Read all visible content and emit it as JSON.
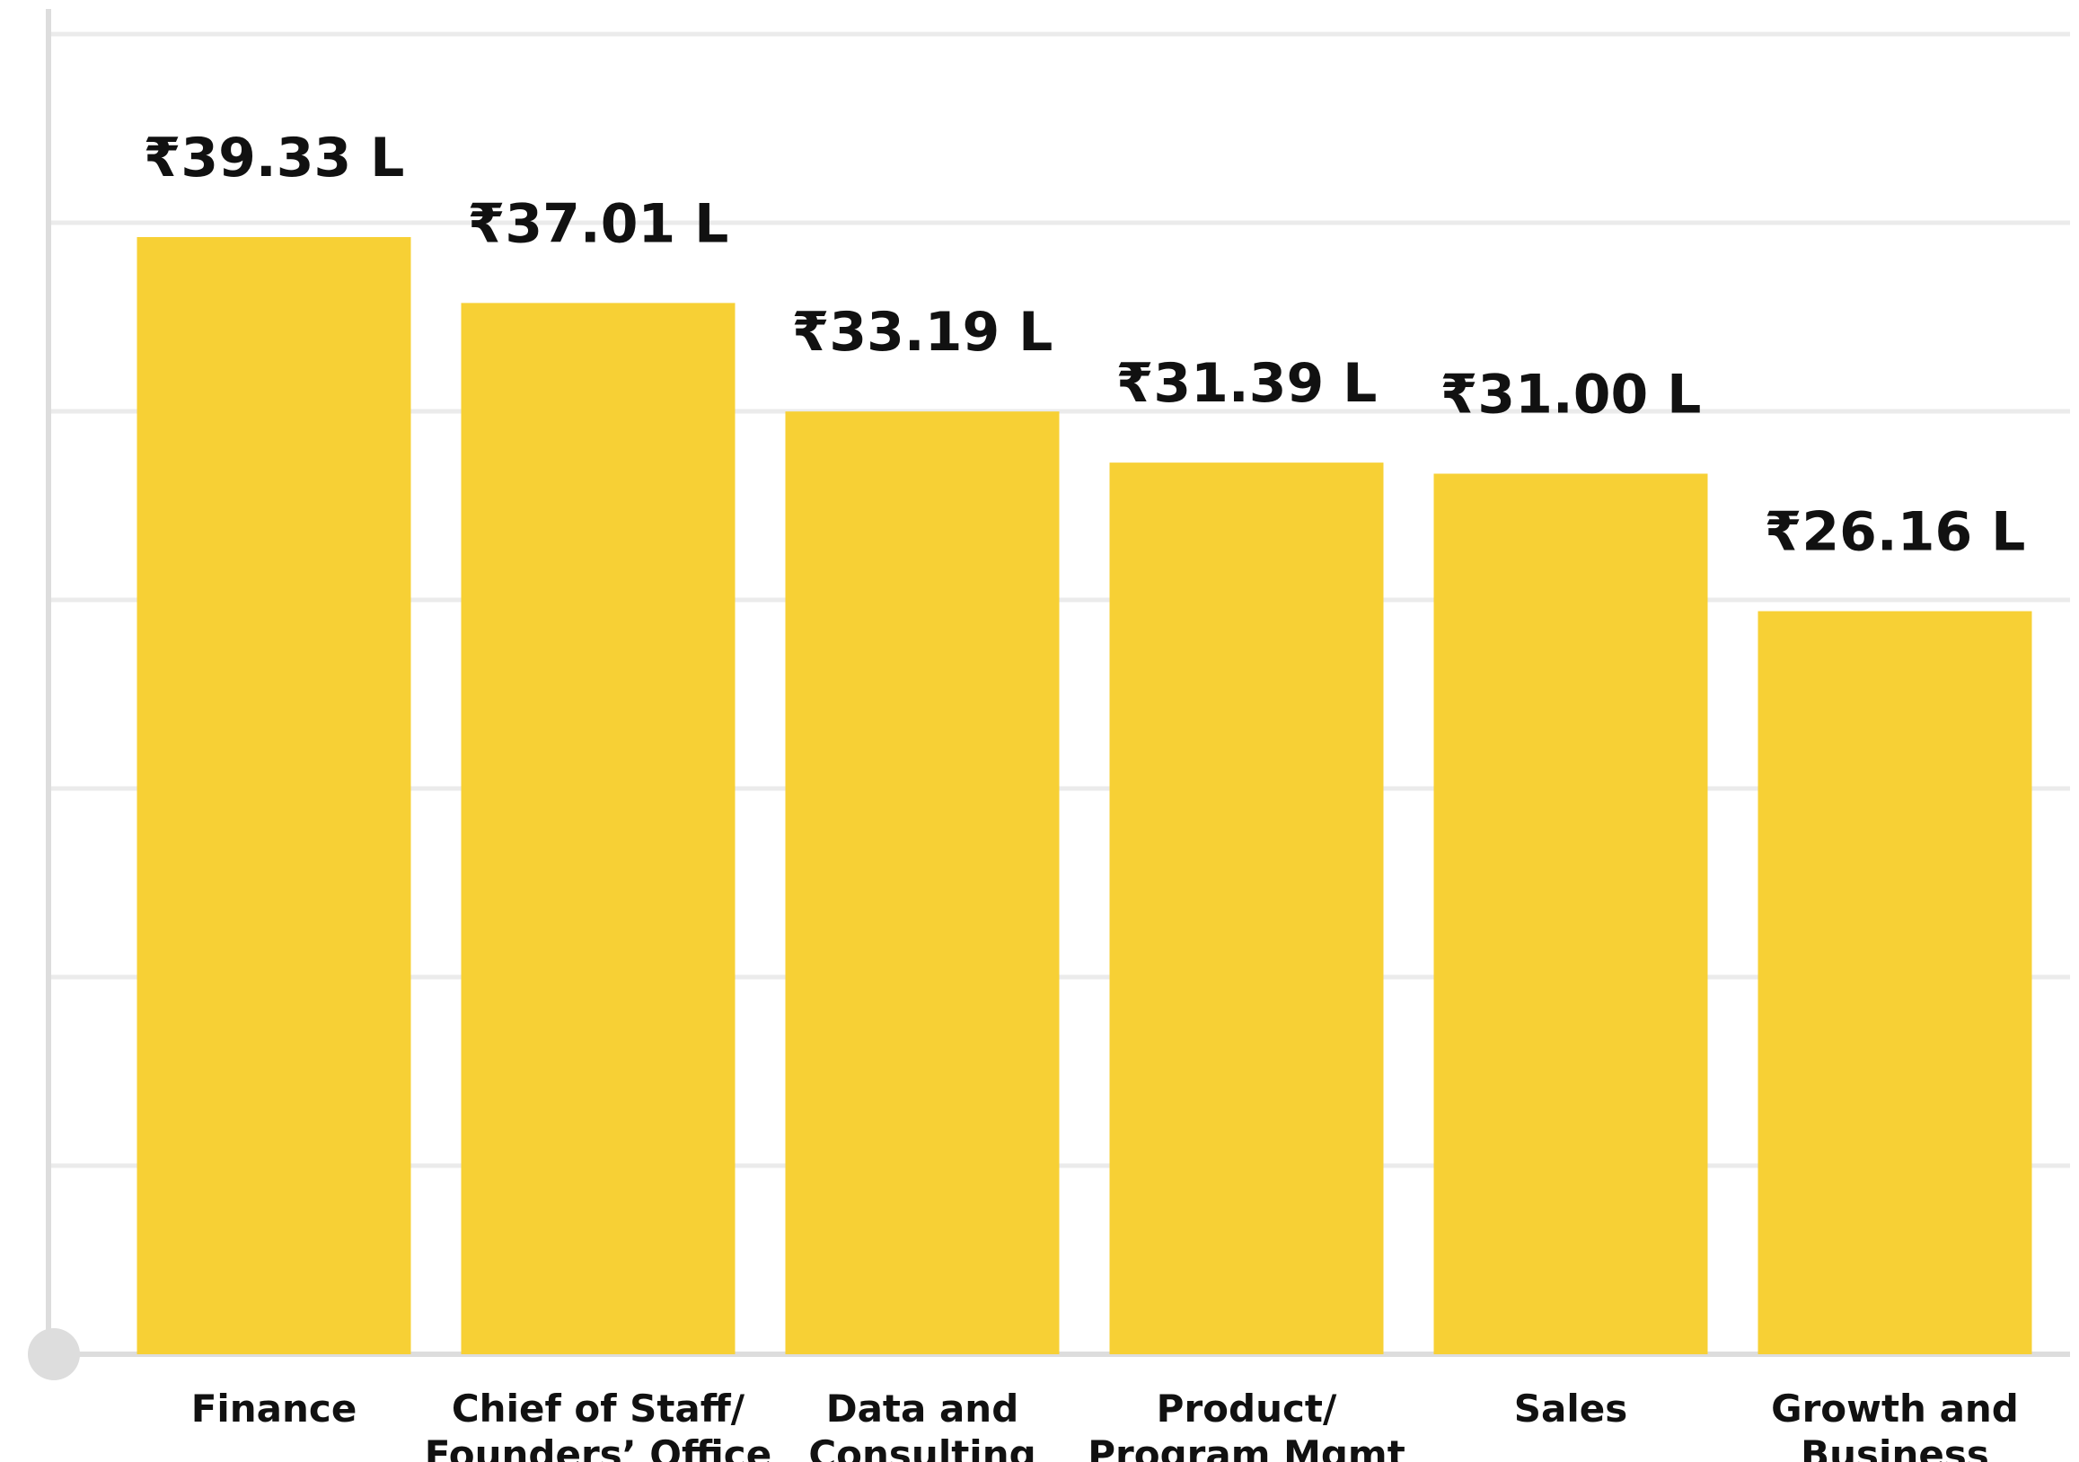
{
  "chart_data": {
    "type": "bar",
    "categories": [
      [
        "Finance"
      ],
      [
        "Chief of Staff/",
        "Founders’ Office"
      ],
      [
        "Data and",
        "Consulting"
      ],
      [
        "Product/",
        "Program Mgmt"
      ],
      [
        "Sales"
      ],
      [
        "Growth and",
        "Business"
      ]
    ],
    "values": [
      39.33,
      37.01,
      33.19,
      31.39,
      31.0,
      26.16
    ],
    "value_labels": [
      "₹39.33 L",
      "₹37.01 L",
      "₹33.19 L",
      "₹31.39 L",
      "₹31.00 L",
      "₹26.16 L"
    ],
    "ylim": [
      0,
      44
    ],
    "grid": true,
    "colors": {
      "bar": "#F7D035",
      "grid": "#EBEBEB",
      "axis": "#DDDDDD",
      "text": "#111111"
    }
  }
}
